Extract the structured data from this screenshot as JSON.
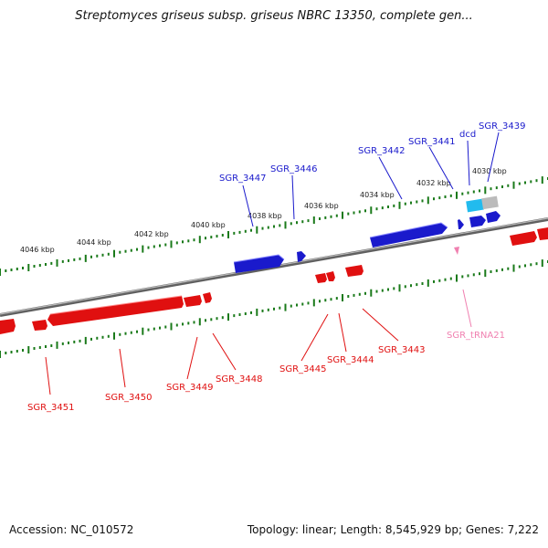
{
  "title": "Streptomyces griseus subsp. griseus NBRC 13350, complete gen...",
  "footer": {
    "accession": "Accession: NC_010572",
    "summary": "Topology: linear; Length: 8,545,929 bp; Genes: 7,222"
  },
  "colors": {
    "forward": "#1a1acc",
    "reverse": "#e01010",
    "trna": "#f080b0",
    "ruler": "#1a7a1a",
    "backbone": "#808080",
    "cyan": "#22bbee",
    "gray": "#bbbbbb"
  },
  "ruler_labels": [
    "4046 kbp",
    "4044 kbp",
    "4042 kbp",
    "4040 kbp",
    "4038 kbp",
    "4036 kbp",
    "4034 kbp",
    "4032 kbp",
    "4030 kbp"
  ],
  "genes_top": [
    {
      "name": "SGR_3447",
      "label": "SGR_3447"
    },
    {
      "name": "SGR_3446",
      "label": "SGR_3446"
    },
    {
      "name": "SGR_3442",
      "label": "SGR_3442"
    },
    {
      "name": "SGR_3441",
      "label": "SGR_3441"
    },
    {
      "name": "dcd",
      "label": "dcd"
    },
    {
      "name": "SGR_3439",
      "label": "SGR_3439"
    }
  ],
  "genes_bottom": [
    {
      "name": "SGR_3451",
      "label": "SGR_3451"
    },
    {
      "name": "SGR_3450",
      "label": "SGR_3450"
    },
    {
      "name": "SGR_3449",
      "label": "SGR_3449"
    },
    {
      "name": "SGR_3448",
      "label": "SGR_3448"
    },
    {
      "name": "SGR_3445",
      "label": "SGR_3445"
    },
    {
      "name": "SGR_3444",
      "label": "SGR_3444"
    },
    {
      "name": "SGR_3443",
      "label": "SGR_3443"
    },
    {
      "name": "SGR_tRNA21",
      "label": "SGR_tRNA21"
    }
  ]
}
